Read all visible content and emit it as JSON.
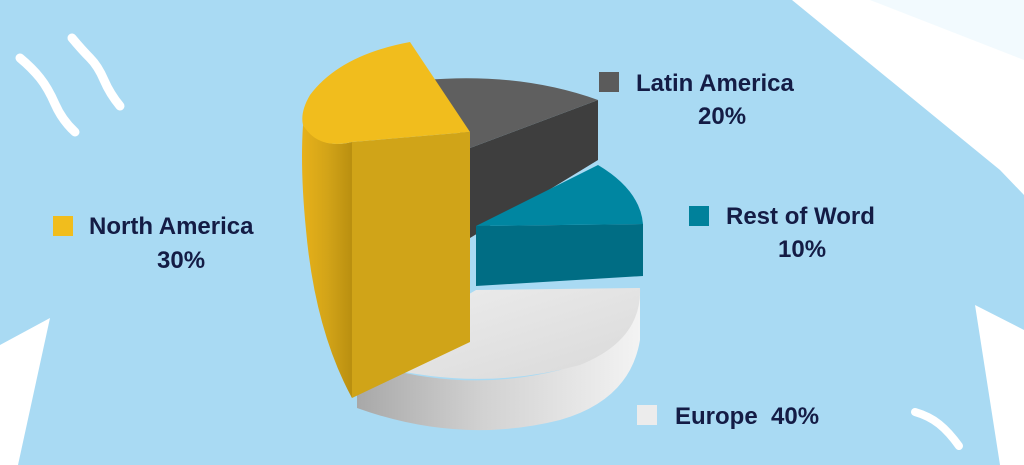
{
  "chart_data": {
    "type": "pie",
    "title": "",
    "categories": [
      "North America",
      "Latin America",
      "Rest of Word",
      "Europe"
    ],
    "values": [
      30,
      20,
      10,
      40
    ],
    "unit": "%",
    "legend": [
      {
        "name": "North America",
        "value_label": "30%",
        "color": "#f1bd1d"
      },
      {
        "name": "Latin America",
        "value_label": "20%",
        "color": "#5b5b5b"
      },
      {
        "name": "Rest of Word",
        "value_label": "10%",
        "color": "#00819b"
      },
      {
        "name": "Europe",
        "value_label": "40%",
        "color": "#ececec"
      }
    ],
    "style": "3d-exploded",
    "legend_placement": "around-chart"
  },
  "colors": {
    "background": "#a9daf3",
    "decoration": "#ffffff",
    "label_text": "#141c45"
  }
}
